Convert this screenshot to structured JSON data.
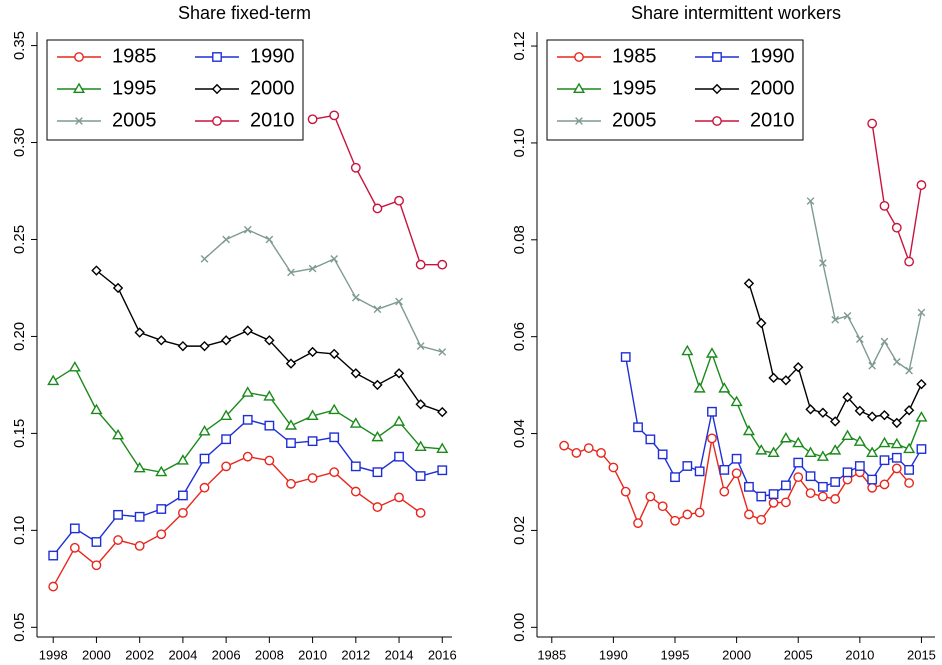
{
  "chart_data": [
    {
      "type": "line",
      "title": "Share fixed-term",
      "xlim": [
        1997.25,
        2016.45
      ],
      "xticks": [
        1998,
        2000,
        2002,
        2004,
        2006,
        2008,
        2010,
        2012,
        2014,
        2016
      ],
      "ylim": [
        0.045,
        0.357
      ],
      "yticks": [
        {
          "value": 0.05,
          "label": "0.05"
        },
        {
          "value": 0.1,
          "label": "0.10"
        },
        0.15,
        {
          "value": 0.2,
          "label": "0.20"
        },
        0.25,
        {
          "value": 0.3,
          "label": "0.30"
        },
        0.35
      ],
      "legend": "upper left",
      "series": [
        {
          "name": "1985",
          "color": "#e8261c",
          "marker": "circle",
          "x": [
            1998,
            1999,
            2000,
            2001,
            2002,
            2003,
            2004,
            2005,
            2006,
            2007,
            2008,
            2009,
            2010,
            2011,
            2012,
            2013,
            2014,
            2015
          ],
          "values": [
            0.071,
            0.091,
            0.082,
            0.095,
            0.092,
            0.098,
            0.109,
            0.122,
            0.133,
            0.138,
            0.136,
            0.124,
            0.127,
            0.13,
            0.12,
            0.112,
            0.117,
            0.109
          ]
        },
        {
          "name": "1990",
          "color": "#1f2fd6",
          "marker": "square",
          "x": [
            1998,
            1999,
            2000,
            2001,
            2002,
            2003,
            2004,
            2005,
            2006,
            2007,
            2008,
            2009,
            2010,
            2011,
            2012,
            2013,
            2014,
            2015,
            2016
          ],
          "values": [
            0.087,
            0.101,
            0.094,
            0.108,
            0.107,
            0.111,
            0.118,
            0.137,
            0.147,
            0.157,
            0.154,
            0.145,
            0.146,
            0.148,
            0.133,
            0.13,
            0.138,
            0.128,
            0.131
          ]
        },
        {
          "name": "1995",
          "color": "#1a8a1a",
          "marker": "triangle",
          "x": [
            1998,
            1999,
            2000,
            2001,
            2002,
            2003,
            2004,
            2005,
            2006,
            2007,
            2008,
            2009,
            2010,
            2011,
            2012,
            2013,
            2014,
            2015,
            2016
          ],
          "values": [
            0.177,
            0.184,
            0.162,
            0.149,
            0.132,
            0.13,
            0.136,
            0.151,
            0.159,
            0.171,
            0.169,
            0.154,
            0.159,
            0.162,
            0.155,
            0.148,
            0.156,
            0.143,
            0.142
          ]
        },
        {
          "name": "2000",
          "color": "#000000",
          "marker": "diamond",
          "x": [
            2000,
            2001,
            2002,
            2003,
            2004,
            2005,
            2006,
            2007,
            2008,
            2009,
            2010,
            2011,
            2012,
            2013,
            2014,
            2015,
            2016
          ],
          "values": [
            0.234,
            0.225,
            0.202,
            0.198,
            0.195,
            0.195,
            0.198,
            0.203,
            0.198,
            0.186,
            0.192,
            0.191,
            0.181,
            0.175,
            0.181,
            0.165,
            0.161
          ]
        },
        {
          "name": "2005",
          "color": "#7f9a92",
          "marker": "x",
          "x": [
            2005,
            2006,
            2007,
            2008,
            2009,
            2010,
            2011,
            2012,
            2013,
            2014,
            2015,
            2016
          ],
          "values": [
            0.24,
            0.25,
            0.255,
            0.25,
            0.233,
            0.235,
            0.24,
            0.22,
            0.214,
            0.218,
            0.195,
            0.192
          ]
        },
        {
          "name": "2010",
          "color": "#c8143c",
          "marker": "circle",
          "x": [
            2010,
            2011,
            2012,
            2013,
            2014,
            2015,
            2016
          ],
          "values": [
            0.312,
            0.314,
            0.287,
            0.266,
            0.27,
            0.237,
            0.237
          ]
        }
      ]
    },
    {
      "type": "line",
      "title": "Share intermittent workers",
      "xlim": [
        1983.8,
        2016.1
      ],
      "xticks": [
        1985,
        1990,
        1995,
        2000,
        2005,
        2010,
        2015
      ],
      "ylim": [
        -0.002,
        0.1229
      ],
      "yticks": [
        {
          "value": 0,
          "label": "0.00"
        },
        0.02,
        0.04,
        0.06,
        0.08,
        {
          "value": 0.1,
          "label": "0.10"
        },
        0.12
      ],
      "legend": "upper left",
      "series": [
        {
          "name": "1985",
          "color": "#e8261c",
          "marker": "circle",
          "x": [
            1986,
            1987,
            1988,
            1989,
            1990,
            1991,
            1992,
            1993,
            1994,
            1995,
            1996,
            1997,
            1998,
            1999,
            2000,
            2001,
            2002,
            2003,
            2004,
            2005,
            2006,
            2007,
            2008,
            2009,
            2010,
            2011,
            2012,
            2013,
            2014
          ],
          "values": [
            0.0375,
            0.036,
            0.037,
            0.036,
            0.033,
            0.028,
            0.0215,
            0.027,
            0.025,
            0.022,
            0.0233,
            0.0237,
            0.039,
            0.028,
            0.0318,
            0.0233,
            0.0222,
            0.0257,
            0.0258,
            0.031,
            0.0277,
            0.027,
            0.0265,
            0.0305,
            0.032,
            0.0288,
            0.0295,
            0.0328,
            0.0298
          ]
        },
        {
          "name": "1990",
          "color": "#1f2fd6",
          "marker": "square",
          "x": [
            1991,
            1992,
            1993,
            1994,
            1995,
            1996,
            1997,
            1998,
            1999,
            2000,
            2001,
            2002,
            2003,
            2004,
            2005,
            2006,
            2007,
            2008,
            2009,
            2010,
            2011,
            2012,
            2013,
            2014,
            2015
          ],
          "values": [
            0.0558,
            0.0413,
            0.0388,
            0.0357,
            0.031,
            0.0333,
            0.0322,
            0.0445,
            0.0325,
            0.0348,
            0.029,
            0.027,
            0.0275,
            0.0293,
            0.034,
            0.0312,
            0.029,
            0.03,
            0.032,
            0.0333,
            0.0305,
            0.0345,
            0.035,
            0.0325,
            0.0368
          ]
        },
        {
          "name": "1995",
          "color": "#1a8a1a",
          "marker": "triangle",
          "x": [
            1996,
            1997,
            1998,
            1999,
            2000,
            2001,
            2002,
            2003,
            2004,
            2005,
            2006,
            2007,
            2008,
            2009,
            2010,
            2011,
            2012,
            2013,
            2014,
            2015
          ],
          "values": [
            0.057,
            0.0493,
            0.0565,
            0.0493,
            0.0465,
            0.0405,
            0.0365,
            0.036,
            0.039,
            0.038,
            0.036,
            0.0352,
            0.0365,
            0.0395,
            0.0383,
            0.036,
            0.038,
            0.0378,
            0.0368,
            0.0433
          ]
        },
        {
          "name": "2000",
          "color": "#000000",
          "marker": "diamond",
          "x": [
            2001,
            2002,
            2003,
            2004,
            2005,
            2006,
            2007,
            2008,
            2009,
            2010,
            2011,
            2012,
            2013,
            2014,
            2015
          ],
          "values": [
            0.071,
            0.0628,
            0.0515,
            0.051,
            0.0537,
            0.045,
            0.0443,
            0.0425,
            0.0475,
            0.0447,
            0.0435,
            0.0438,
            0.0422,
            0.0448,
            0.0502
          ]
        },
        {
          "name": "2005",
          "color": "#7f9a92",
          "marker": "x",
          "x": [
            2006,
            2007,
            2008,
            2009,
            2010,
            2011,
            2012,
            2013,
            2014,
            2015
          ],
          "values": [
            0.088,
            0.0752,
            0.0635,
            0.0643,
            0.0595,
            0.054,
            0.059,
            0.0548,
            0.053,
            0.065
          ]
        },
        {
          "name": "2010",
          "color": "#c8143c",
          "marker": "circle",
          "x": [
            2011,
            2012,
            2013,
            2014,
            2015
          ],
          "values": [
            0.104,
            0.087,
            0.0825,
            0.0755,
            0.0913
          ]
        }
      ]
    }
  ]
}
